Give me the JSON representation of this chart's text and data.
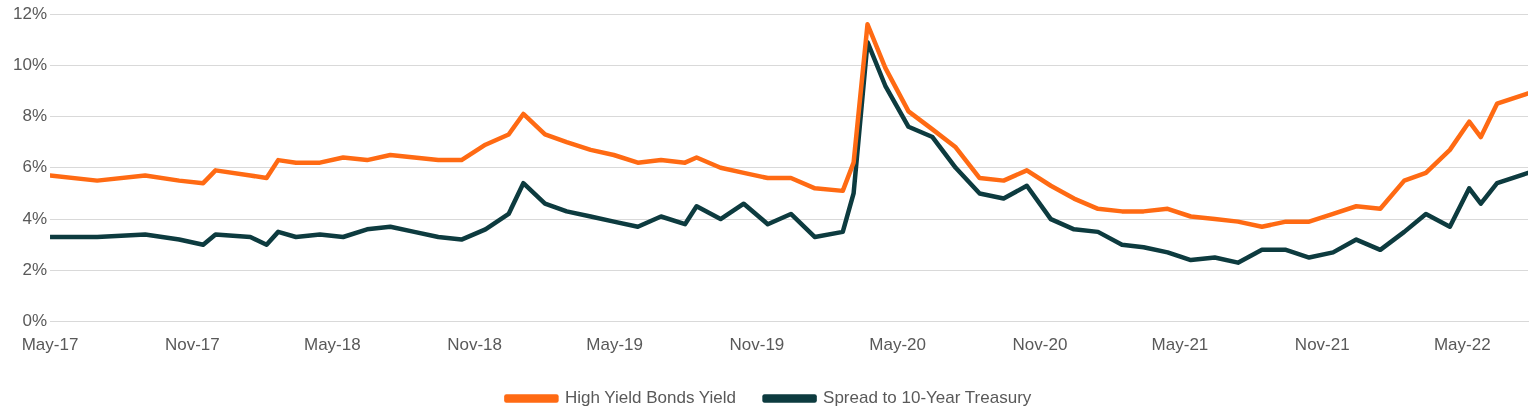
{
  "chart_data": {
    "type": "line",
    "x": [
      "2017-05-01",
      "2017-07-01",
      "2017-09-01",
      "2017-10-15",
      "2017-11-15",
      "2017-12-01",
      "2018-01-15",
      "2018-02-05",
      "2018-02-20",
      "2018-03-15",
      "2018-04-15",
      "2018-05-15",
      "2018-06-15",
      "2018-07-15",
      "2018-08-15",
      "2018-09-15",
      "2018-10-15",
      "2018-11-15",
      "2018-12-15",
      "2019-01-03",
      "2019-01-31",
      "2019-02-28",
      "2019-03-31",
      "2019-04-30",
      "2019-05-31",
      "2019-06-30",
      "2019-07-31",
      "2019-08-15",
      "2019-09-15",
      "2019-10-15",
      "2019-11-15",
      "2019-12-15",
      "2020-01-15",
      "2020-02-20",
      "2020-03-05",
      "2020-03-23",
      "2020-04-15",
      "2020-05-15",
      "2020-06-15",
      "2020-07-15",
      "2020-08-15",
      "2020-09-15",
      "2020-10-15",
      "2020-11-15",
      "2020-12-15",
      "2021-01-15",
      "2021-02-15",
      "2021-03-15",
      "2021-04-15",
      "2021-05-15",
      "2021-06-15",
      "2021-07-15",
      "2021-08-15",
      "2021-09-15",
      "2021-10-15",
      "2021-11-15",
      "2021-12-15",
      "2022-01-15",
      "2022-02-15",
      "2022-03-15",
      "2022-04-15",
      "2022-05-10",
      "2022-05-25",
      "2022-06-15",
      "2022-07-25"
    ],
    "series": [
      {
        "name": "High Yield Bonds Yield",
        "color": "#ff6a13",
        "values": [
          5.7,
          5.5,
          5.7,
          5.5,
          5.4,
          5.9,
          5.7,
          5.6,
          6.3,
          6.2,
          6.2,
          6.4,
          6.3,
          6.5,
          6.4,
          6.3,
          6.3,
          6.9,
          7.3,
          8.1,
          7.3,
          7.0,
          6.7,
          6.5,
          6.2,
          6.3,
          6.2,
          6.4,
          6.0,
          5.8,
          5.6,
          5.6,
          5.2,
          5.1,
          6.2,
          11.6,
          9.9,
          8.2,
          7.5,
          6.8,
          5.6,
          5.5,
          5.9,
          5.3,
          4.8,
          4.4,
          4.3,
          4.3,
          4.4,
          4.1,
          4.0,
          3.9,
          3.7,
          3.9,
          3.9,
          4.2,
          4.5,
          4.4,
          5.5,
          5.8,
          6.7,
          7.8,
          7.2,
          8.5,
          8.9
        ]
      },
      {
        "name": "Spread to 10-Year Treasury",
        "color": "#0d3b3f",
        "values": [
          3.3,
          3.3,
          3.4,
          3.2,
          3.0,
          3.4,
          3.3,
          3.0,
          3.5,
          3.3,
          3.4,
          3.3,
          3.6,
          3.7,
          3.5,
          3.3,
          3.2,
          3.6,
          4.2,
          5.4,
          4.6,
          4.3,
          4.1,
          3.9,
          3.7,
          4.1,
          3.8,
          4.5,
          4.0,
          4.6,
          3.8,
          4.2,
          3.3,
          3.5,
          5.0,
          10.9,
          9.2,
          7.6,
          7.2,
          6.0,
          5.0,
          4.8,
          5.3,
          4.0,
          3.6,
          3.5,
          3.0,
          2.9,
          2.7,
          2.4,
          2.5,
          2.3,
          2.8,
          2.8,
          2.5,
          2.7,
          3.2,
          2.8,
          3.5,
          4.2,
          3.7,
          5.2,
          4.6,
          5.4,
          5.8
        ]
      }
    ],
    "xlim": [
      "2017-05-01",
      "2022-07-25"
    ],
    "xticks": [
      {
        "value": "2017-05-01",
        "label": "May-17"
      },
      {
        "value": "2017-11-01",
        "label": "Nov-17"
      },
      {
        "value": "2018-05-01",
        "label": "May-18"
      },
      {
        "value": "2018-11-01",
        "label": "Nov-18"
      },
      {
        "value": "2019-05-01",
        "label": "May-19"
      },
      {
        "value": "2019-11-01",
        "label": "Nov-19"
      },
      {
        "value": "2020-05-01",
        "label": "May-20"
      },
      {
        "value": "2020-11-01",
        "label": "Nov-20"
      },
      {
        "value": "2021-05-01",
        "label": "May-21"
      },
      {
        "value": "2021-11-01",
        "label": "Nov-21"
      },
      {
        "value": "2022-05-01",
        "label": "May-22"
      }
    ],
    "ylim": [
      0,
      12
    ],
    "yticks": [
      {
        "value": 0,
        "label": "0%"
      },
      {
        "value": 2,
        "label": "2%"
      },
      {
        "value": 4,
        "label": "4%"
      },
      {
        "value": 6,
        "label": "6%"
      },
      {
        "value": 8,
        "label": "8%"
      },
      {
        "value": 10,
        "label": "10%"
      },
      {
        "value": 12,
        "label": "12%"
      }
    ],
    "grid": "y",
    "legend": "bottom",
    "marker": "none",
    "line_style": "solid"
  }
}
